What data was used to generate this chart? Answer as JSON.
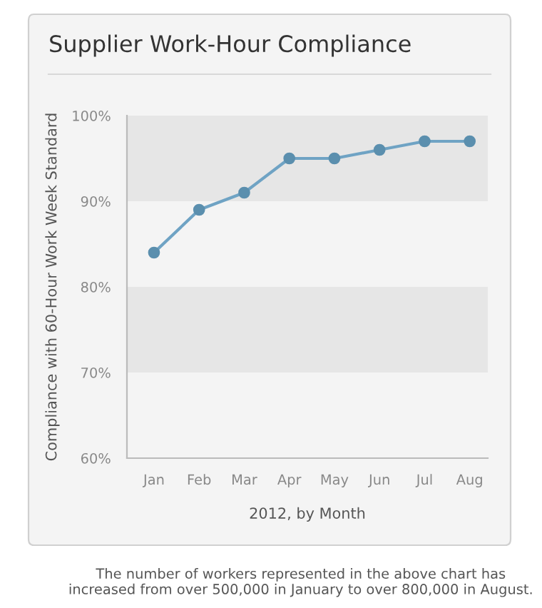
{
  "chart_data": {
    "type": "line",
    "title": "Supplier Work-Hour Compliance",
    "xlabel": "2012, by Month",
    "ylabel": "Compliance with 60-Hour Work Week Standard",
    "categories": [
      "Jan",
      "Feb",
      "Mar",
      "Apr",
      "May",
      "Jun",
      "Jul",
      "Aug"
    ],
    "series": [
      {
        "color": "#6fa3c4",
        "values": [
          84,
          89,
          91,
          95,
          95,
          96,
          97,
          97
        ]
      }
    ],
    "marker": "circle",
    "line_style": "solid",
    "ylim": [
      60,
      100
    ],
    "yticks": [
      {
        "value": 60,
        "label": "60%"
      },
      {
        "value": 70,
        "label": "70%"
      },
      {
        "value": 80,
        "label": "80%"
      },
      {
        "value": 90,
        "label": "90%"
      },
      {
        "value": 100,
        "label": "100%"
      }
    ],
    "bands": [
      {
        "axis": "y",
        "from": 70,
        "to": 80,
        "color": "#e6e6e6"
      },
      {
        "axis": "y",
        "from": 90,
        "to": 100,
        "color": "#e6e6e6"
      }
    ],
    "grid": false,
    "legend": false,
    "annotations": [
      "The number of workers represented in the above chart has increased from over 500,000 in January to over 800,000 in August."
    ]
  }
}
